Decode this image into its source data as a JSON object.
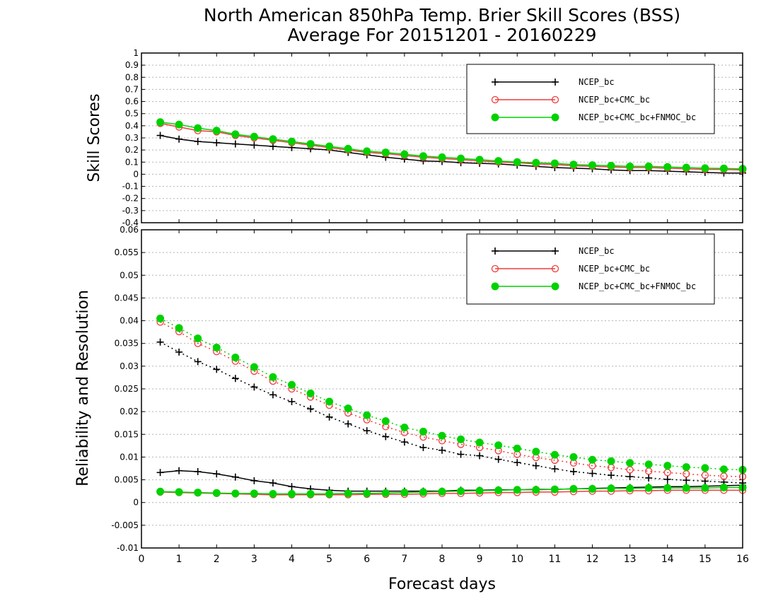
{
  "title_line1": "North American 850hPa Temp. Brier Skill Scores (BSS)",
  "title_line2": "Average For 20151201 - 20160229",
  "xlabel": "Forecast days",
  "colors": {
    "NCEP_bc": "#000000",
    "NCEP_bc+CMC_bc": "#f03c3c",
    "NCEP_bc+CMC_bc+FNMOC_bc": "#00d200"
  },
  "chart_data": [
    {
      "type": "line",
      "ylabel": "Skill Scores",
      "xlim": [
        0,
        16
      ],
      "ylim": [
        -0.4,
        1
      ],
      "x_ticks": [
        "0",
        "1",
        "2",
        "3",
        "4",
        "5",
        "6",
        "7",
        "8",
        "9",
        "10",
        "11",
        "12",
        "13",
        "14",
        "15",
        "16"
      ],
      "y_ticks": [
        "1",
        "0.9",
        "0.8",
        "0.7",
        "0.6",
        "0.5",
        "0.4",
        "0.3",
        "0.2",
        "0.1",
        "0",
        "-0.1",
        "-0.2",
        "-0.3",
        "-0.4"
      ],
      "grid": true,
      "legend_position": "top-right",
      "x": [
        0.5,
        1,
        1.5,
        2,
        2.5,
        3,
        3.5,
        4,
        4.5,
        5,
        5.5,
        6,
        6.5,
        7,
        7.5,
        8,
        8.5,
        9,
        9.5,
        10,
        10.5,
        11,
        11.5,
        12,
        12.5,
        13,
        13.5,
        14,
        14.5,
        15,
        15.5,
        16
      ],
      "series": [
        {
          "name": "NCEP_bc",
          "marker": "plus",
          "style": "solid",
          "values": [
            0.32,
            0.29,
            0.27,
            0.26,
            0.25,
            0.24,
            0.23,
            0.22,
            0.21,
            0.2,
            0.18,
            0.16,
            0.14,
            0.125,
            0.11,
            0.105,
            0.095,
            0.09,
            0.085,
            0.075,
            0.065,
            0.055,
            0.05,
            0.045,
            0.035,
            0.03,
            0.03,
            0.025,
            0.02,
            0.015,
            0.01,
            0.01
          ]
        },
        {
          "name": "NCEP_bc+CMC_bc",
          "marker": "circle-open",
          "style": "solid",
          "values": [
            0.42,
            0.39,
            0.36,
            0.35,
            0.32,
            0.3,
            0.28,
            0.26,
            0.24,
            0.22,
            0.2,
            0.18,
            0.17,
            0.155,
            0.14,
            0.13,
            0.12,
            0.11,
            0.1,
            0.095,
            0.085,
            0.08,
            0.07,
            0.065,
            0.06,
            0.055,
            0.055,
            0.05,
            0.045,
            0.04,
            0.04,
            0.035
          ]
        },
        {
          "name": "NCEP_bc+CMC_bc+FNMOC_bc",
          "marker": "circle-filled",
          "style": "solid",
          "values": [
            0.43,
            0.41,
            0.38,
            0.36,
            0.33,
            0.31,
            0.29,
            0.27,
            0.25,
            0.23,
            0.21,
            0.19,
            0.18,
            0.165,
            0.15,
            0.14,
            0.13,
            0.12,
            0.11,
            0.1,
            0.095,
            0.09,
            0.08,
            0.075,
            0.07,
            0.065,
            0.065,
            0.06,
            0.055,
            0.05,
            0.048,
            0.045
          ]
        }
      ]
    },
    {
      "type": "line",
      "ylabel": "Reliability and Resolution",
      "xlim": [
        0,
        16
      ],
      "ylim": [
        -0.01,
        0.06
      ],
      "x_ticks": [
        "0",
        "1",
        "2",
        "3",
        "4",
        "5",
        "6",
        "7",
        "8",
        "9",
        "10",
        "11",
        "12",
        "13",
        "14",
        "15",
        "16"
      ],
      "y_ticks": [
        "0.06",
        "0.055",
        "0.05",
        "0.045",
        "0.04",
        "0.035",
        "0.03",
        "0.025",
        "0.02",
        "0.015",
        "0.01",
        "0.005",
        "0",
        "-0.005",
        "-0.01"
      ],
      "grid": true,
      "legend_position": "top-right",
      "x": [
        0.5,
        1,
        1.5,
        2,
        2.5,
        3,
        3.5,
        4,
        4.5,
        5,
        5.5,
        6,
        6.5,
        7,
        7.5,
        8,
        8.5,
        9,
        9.5,
        10,
        10.5,
        11,
        11.5,
        12,
        12.5,
        13,
        13.5,
        14,
        14.5,
        15,
        15.5,
        16
      ],
      "series": [
        {
          "name": "NCEP_bc",
          "component": "resolution",
          "marker": "plus",
          "style": "dotted",
          "values": [
            0.0353,
            0.0331,
            0.031,
            0.0293,
            0.0273,
            0.0254,
            0.0237,
            0.0222,
            0.0206,
            0.0188,
            0.0173,
            0.0158,
            0.0145,
            0.0133,
            0.0121,
            0.0115,
            0.0106,
            0.0103,
            0.0095,
            0.0088,
            0.0081,
            0.0074,
            0.0068,
            0.0064,
            0.006,
            0.0057,
            0.0054,
            0.0051,
            0.0049,
            0.0047,
            0.0045,
            0.0043
          ]
        },
        {
          "name": "NCEP_bc+CMC_bc",
          "component": "resolution",
          "marker": "circle-open",
          "style": "dotted",
          "values": [
            0.0397,
            0.0376,
            0.035,
            0.0332,
            0.0311,
            0.0289,
            0.0267,
            0.025,
            0.0232,
            0.0214,
            0.0197,
            0.0182,
            0.0167,
            0.0154,
            0.0144,
            0.0136,
            0.0128,
            0.0121,
            0.0114,
            0.0106,
            0.0099,
            0.0093,
            0.0087,
            0.0081,
            0.0077,
            0.0072,
            0.0069,
            0.0066,
            0.0063,
            0.006,
            0.0058,
            0.0057
          ]
        },
        {
          "name": "NCEP_bc+CMC_bc+FNMOC_bc",
          "component": "resolution",
          "marker": "circle-filled",
          "style": "dotted",
          "values": [
            0.0405,
            0.0384,
            0.0361,
            0.0341,
            0.0319,
            0.0298,
            0.0276,
            0.0259,
            0.024,
            0.0222,
            0.0207,
            0.0192,
            0.0179,
            0.0165,
            0.0156,
            0.0147,
            0.0139,
            0.0132,
            0.0126,
            0.0119,
            0.0112,
            0.0105,
            0.01,
            0.0094,
            0.0091,
            0.0087,
            0.0084,
            0.0081,
            0.0078,
            0.0076,
            0.0073,
            0.0072
          ]
        },
        {
          "name": "NCEP_bc",
          "component": "reliability",
          "marker": "plus",
          "style": "solid",
          "values": [
            0.0066,
            0.007,
            0.0068,
            0.0063,
            0.0056,
            0.0048,
            0.0043,
            0.0035,
            0.003,
            0.0027,
            0.0025,
            0.0025,
            0.0025,
            0.0025,
            0.0025,
            0.0025,
            0.0027,
            0.0027,
            0.0028,
            0.0028,
            0.0029,
            0.0029,
            0.003,
            0.0031,
            0.0032,
            0.0033,
            0.0034,
            0.0035,
            0.0035,
            0.0036,
            0.0037,
            0.0038
          ]
        },
        {
          "name": "NCEP_bc+CMC_bc",
          "component": "reliability",
          "marker": "circle-open",
          "style": "solid",
          "values": [
            0.0023,
            0.0022,
            0.0021,
            0.002,
            0.0019,
            0.0018,
            0.0017,
            0.0017,
            0.0017,
            0.0017,
            0.0017,
            0.0018,
            0.0018,
            0.0018,
            0.0019,
            0.002,
            0.002,
            0.0021,
            0.0022,
            0.0022,
            0.0023,
            0.0023,
            0.0024,
            0.0025,
            0.0025,
            0.0026,
            0.0026,
            0.0027,
            0.0027,
            0.0027,
            0.0027,
            0.0027
          ]
        },
        {
          "name": "NCEP_bc+CMC_bc+FNMOC_bc",
          "component": "reliability",
          "marker": "circle-filled",
          "style": "solid",
          "values": [
            0.0024,
            0.0023,
            0.0022,
            0.0021,
            0.002,
            0.002,
            0.0019,
            0.0019,
            0.0019,
            0.0019,
            0.002,
            0.002,
            0.0021,
            0.0022,
            0.0023,
            0.0024,
            0.0025,
            0.0026,
            0.0027,
            0.0028,
            0.0028,
            0.0029,
            0.003,
            0.003,
            0.0031,
            0.0031,
            0.0032,
            0.0032,
            0.0032,
            0.0032,
            0.0033,
            0.0033
          ]
        }
      ]
    }
  ]
}
